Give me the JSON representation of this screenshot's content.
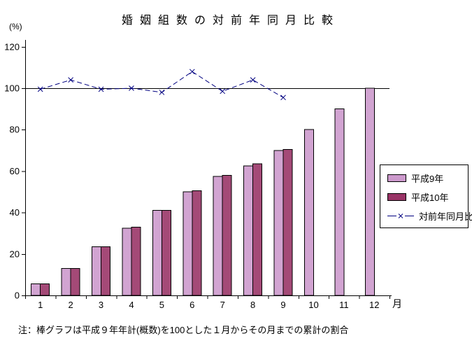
{
  "note": "注：棒グラフは平成９年年計(概数)を100とした１月からその月までの累計の割合",
  "colors": {
    "background": "#FFFFFF",
    "axis": "#000000",
    "bar_heisei9": "#CC99CC",
    "bar_heisei10": "#993366",
    "ratio_line": "#000080"
  },
  "chart_data": {
    "type": "bar",
    "title": "婚姻組数の対前年同月比較",
    "y_unit": "(%)",
    "x_unit": "月",
    "categories": [
      "1",
      "2",
      "3",
      "4",
      "5",
      "6",
      "7",
      "8",
      "9",
      "10",
      "11",
      "12"
    ],
    "ylim": [
      0,
      120
    ],
    "yticks": [
      0,
      20,
      40,
      60,
      80,
      100,
      120
    ],
    "reference_line": 100,
    "grid": false,
    "legend_position": "right",
    "series": [
      {
        "name": "平成9年",
        "type": "bar",
        "color": "#CC99CC",
        "values": [
          5.5,
          13,
          23.5,
          32.5,
          41,
          50,
          57.5,
          62.5,
          70,
          80,
          90,
          100
        ]
      },
      {
        "name": "平成10年",
        "type": "bar",
        "color": "#993366",
        "values": [
          5.5,
          13,
          23.5,
          33,
          41,
          50.5,
          58,
          63.5,
          70.5,
          null,
          null,
          null
        ]
      },
      {
        "name": "対前年同月比",
        "type": "line",
        "color": "#000080",
        "marker": "x",
        "dashed": true,
        "values": [
          99.5,
          104,
          99.5,
          100,
          98,
          108,
          98.5,
          104,
          95.5,
          null,
          null,
          null
        ]
      }
    ]
  }
}
